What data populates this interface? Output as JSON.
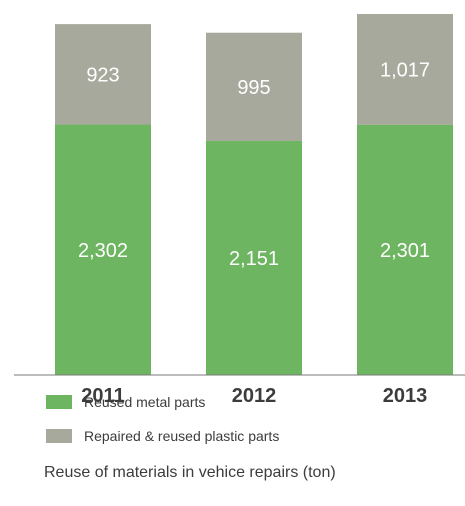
{
  "chart_data": {
    "type": "bar",
    "stacked": true,
    "categories": [
      "2011",
      "2012",
      "2013"
    ],
    "series": [
      {
        "name": "Reused metal parts",
        "values": [
          2302,
          2151,
          2301
        ],
        "labels": [
          "2,302",
          "2,151",
          "2,301"
        ],
        "color": "#6db560"
      },
      {
        "name": "Repaired & reused plastic parts",
        "values": [
          923,
          995,
          1017
        ],
        "labels": [
          "923",
          "995",
          "1,017"
        ],
        "color": "#a7a99c"
      }
    ],
    "caption": "Reuse of materials in vehice repairs (ton)",
    "ylim": [
      0,
      3318
    ],
    "grid": false,
    "legend_position": "bottom"
  }
}
